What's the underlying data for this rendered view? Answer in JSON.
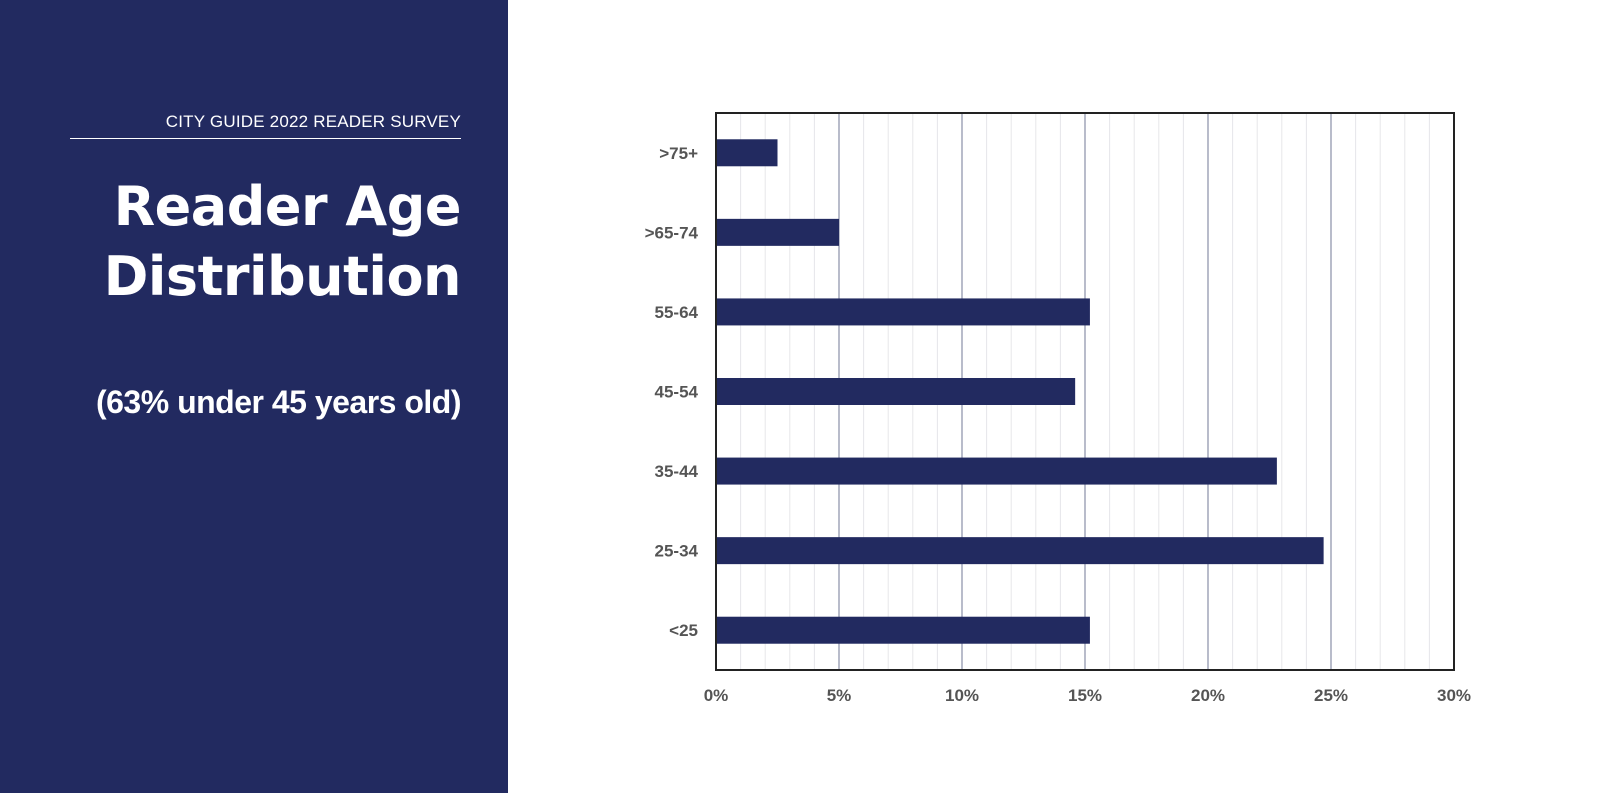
{
  "panel": {
    "kicker": "CITY GUIDE 2022 READER SURVEY",
    "title_line1": "Reader Age",
    "title_line2": "Distribution",
    "subtitle": "(63% under 45 years old)",
    "background_color": "#222a60"
  },
  "chart_data": {
    "type": "bar",
    "orientation": "horizontal",
    "categories": [
      ">75+",
      ">65-74",
      "55-64",
      "45-54",
      "35-44",
      "25-34",
      "<25"
    ],
    "values": [
      2.5,
      5.0,
      15.2,
      14.6,
      22.8,
      24.7,
      15.2
    ],
    "unit": "%",
    "xlim": [
      0,
      30
    ],
    "xticks": [
      "0%",
      "5%",
      "10%",
      "15%",
      "20%",
      "25%",
      "30%"
    ],
    "xtick_values": [
      0,
      5,
      10,
      15,
      20,
      25,
      30
    ],
    "grid": true,
    "minor_step": 1,
    "bar_color": "#222a60",
    "xlabel": "",
    "ylabel": ""
  }
}
